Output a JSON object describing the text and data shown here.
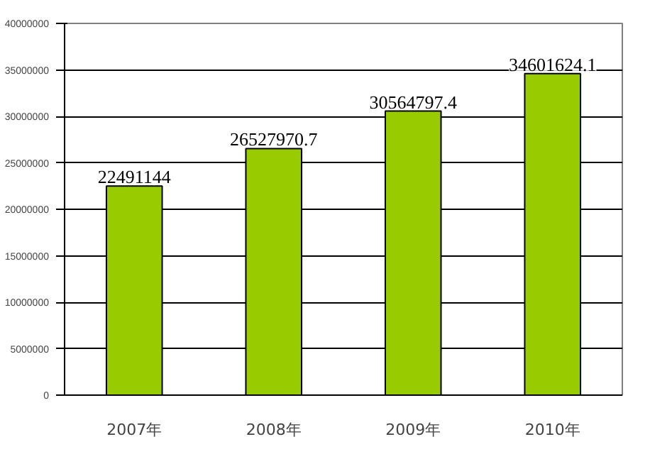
{
  "chart_data": {
    "type": "bar",
    "categories": [
      "2007年",
      "2008年",
      "2009年",
      "2010年"
    ],
    "values": [
      22491144,
      26527970.7,
      30564797.4,
      34601624.1
    ],
    "color": "#99cc00",
    "ylim": [
      0,
      40000000
    ],
    "yticks": [
      0,
      5000000,
      10000000,
      15000000,
      20000000,
      25000000,
      30000000,
      35000000,
      40000000
    ],
    "grid": "y",
    "data_labels": true
  }
}
